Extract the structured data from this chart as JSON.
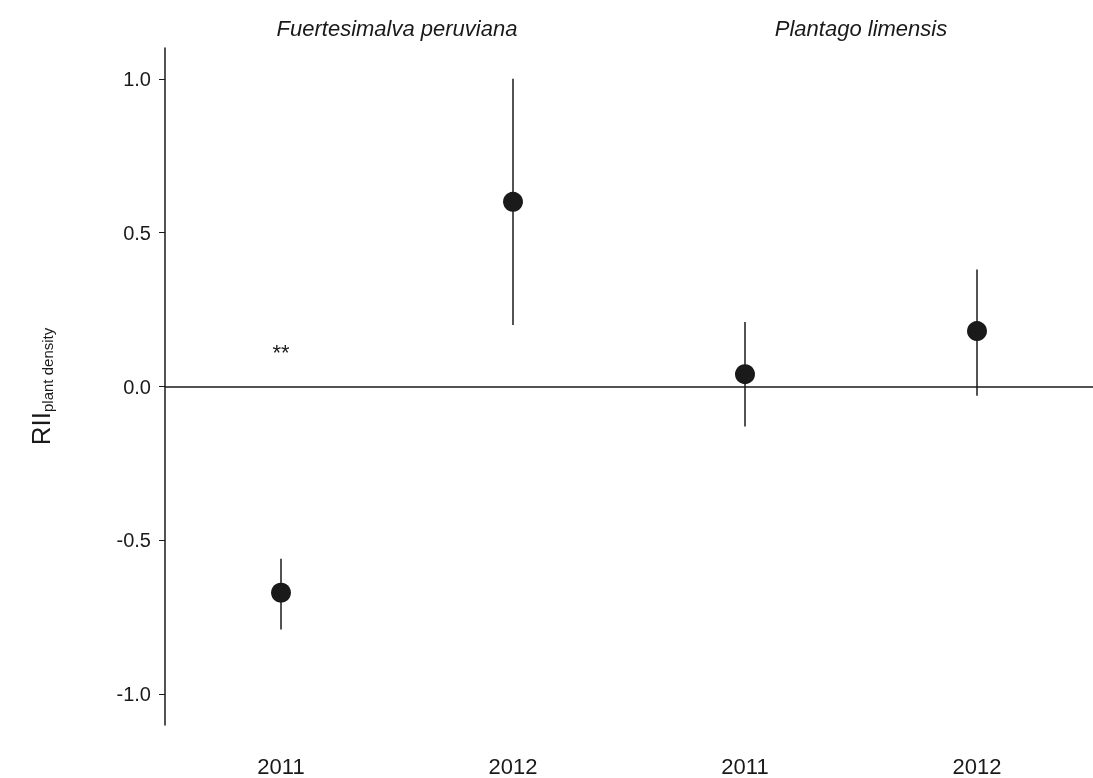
{
  "chart_data": {
    "type": "scatter",
    "ylabel": "RII$_{plant density}$",
    "categories": [
      "2011",
      "2012",
      "2011",
      "2012"
    ],
    "series": [
      {
        "color": "#1a1a1a",
        "values": [
          -0.67,
          0.6,
          0.04,
          0.18
        ],
        "errors": [
          [
            -0.79,
            -0.56
          ],
          [
            0.2,
            1.0
          ],
          [
            -0.13,
            0.21
          ],
          [
            -0.03,
            0.38
          ]
        ]
      }
    ],
    "ylim": [
      -1.1,
      1.1
    ],
    "yticks": [
      {
        "value": -1,
        "label": "-1.0"
      },
      {
        "value": -0.5,
        "label": "-0.5"
      },
      {
        "value": 0,
        "label": "0.0"
      },
      {
        "value": 0.5,
        "label": "0.5"
      },
      {
        "value": 1,
        "label": "1.0"
      }
    ],
    "ref_lines": [
      {
        "axis": "y",
        "value": 0,
        "color": "#1a1a1a"
      }
    ],
    "annotations": [
      "Fuertesimalva peruviana",
      "Plantago limensis",
      "**"
    ],
    "marker": "circle",
    "grid": false
  }
}
